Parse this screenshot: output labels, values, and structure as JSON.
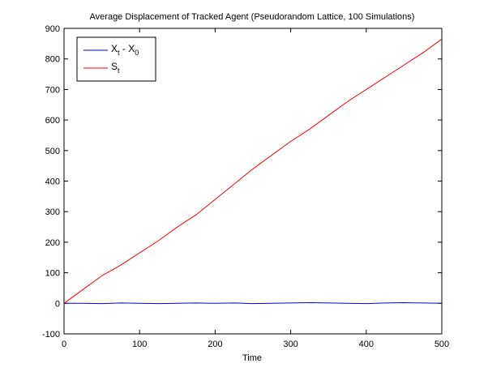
{
  "chart_data": {
    "type": "line",
    "title": "Average Displacement of Tracked Agent (Pseudorandom Lattice, 100 Simulations)",
    "xlabel": "Time",
    "ylabel": "",
    "xlim": [
      0,
      500
    ],
    "ylim": [
      -100,
      900
    ],
    "x_ticks": [
      "0",
      "100",
      "200",
      "300",
      "400",
      "500"
    ],
    "y_ticks": [
      "-100",
      "0",
      "100",
      "200",
      "300",
      "400",
      "500",
      "600",
      "700",
      "800",
      "900"
    ],
    "grid": false,
    "legend_position": "top-left",
    "legend": [
      {
        "main": "X",
        "sub": "t",
        "middle": " - X",
        "sub2": "0"
      },
      {
        "main": "S",
        "sub": "t",
        "middle": "",
        "sub2": ""
      }
    ],
    "series": [
      {
        "color": "#0000ff",
        "x": [
          0,
          25,
          50,
          75,
          100,
          125,
          150,
          175,
          200,
          225,
          250,
          275,
          300,
          325,
          350,
          375,
          400,
          425,
          450,
          475,
          500
        ],
        "y": [
          0,
          0,
          -1,
          1,
          0,
          -1,
          0,
          1,
          0,
          1,
          -1,
          0,
          1,
          2,
          1,
          0,
          -1,
          1,
          2,
          1,
          0
        ]
      },
      {
        "color": "#ff0000",
        "x": [
          0,
          25,
          50,
          75,
          100,
          125,
          150,
          175,
          200,
          225,
          250,
          275,
          300,
          325,
          350,
          375,
          400,
          425,
          450,
          475,
          500
        ],
        "y": [
          0,
          45,
          90,
          125,
          165,
          205,
          250,
          290,
          340,
          390,
          440,
          485,
          530,
          570,
          615,
          660,
          700,
          740,
          780,
          820,
          865
        ]
      }
    ]
  }
}
